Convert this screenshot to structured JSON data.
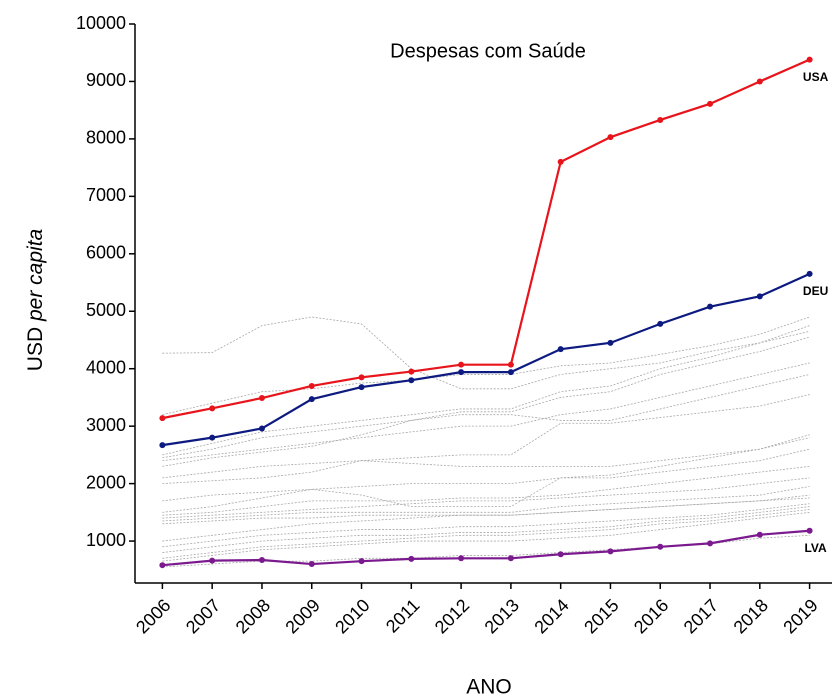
{
  "chart_data": {
    "type": "line",
    "title": "Despesas com Saúde",
    "xlabel": "ANO",
    "ylabel": {
      "text": "USD",
      "emphasis": "per capita"
    },
    "x": [
      2006,
      2007,
      2008,
      2009,
      2010,
      2011,
      2012,
      2013,
      2014,
      2015,
      2016,
      2017,
      2018,
      2019
    ],
    "xlim": [
      2005.45,
      2019.45
    ],
    "xticks": [
      2006,
      2007,
      2008,
      2009,
      2010,
      2011,
      2012,
      2013,
      2014,
      2015,
      2016,
      2017,
      2018,
      2019
    ],
    "ylim": [
      270,
      10000
    ],
    "yticks": [
      1000,
      2000,
      3000,
      4000,
      5000,
      6000,
      7000,
      8000,
      9000,
      10000
    ],
    "series": [
      {
        "color": "#a8a8a8",
        "dashed": true,
        "values": [
          4270,
          4280,
          4750,
          4900,
          4780,
          4000,
          3650,
          3650,
          3900,
          4000,
          4100,
          4300,
          4450,
          4650
        ]
      },
      {
        "color": "#a8a8a8",
        "dashed": true,
        "values": [
          3200,
          3400,
          3600,
          3650,
          3750,
          3800,
          3900,
          3900,
          4050,
          4100,
          4250,
          4400,
          4600,
          4900
        ]
      },
      {
        "color": "#a8a8a8",
        "dashed": true,
        "values": [
          2500,
          2700,
          2900,
          3000,
          3100,
          3200,
          3300,
          3300,
          3600,
          3700,
          4000,
          4200,
          4450,
          4750
        ]
      },
      {
        "color": "#a8a8a8",
        "dashed": true,
        "values": [
          2450,
          2600,
          2800,
          2900,
          3000,
          3100,
          3250,
          3250,
          3500,
          3600,
          3900,
          4100,
          4300,
          4550
        ]
      },
      {
        "color": "#a8a8a8",
        "dashed": true,
        "values": [
          2400,
          2500,
          2600,
          2700,
          2800,
          2900,
          3000,
          3000,
          3200,
          3300,
          3500,
          3700,
          3900,
          4100
        ]
      },
      {
        "color": "#a8a8a8",
        "dashed": true,
        "values": [
          2300,
          2450,
          2550,
          2650,
          2850,
          3100,
          3200,
          3200,
          3100,
          3100,
          3300,
          3500,
          3700,
          3900
        ]
      },
      {
        "color": "#a8a8a8",
        "dashed": true,
        "values": [
          2100,
          2200,
          2300,
          2350,
          2400,
          2450,
          2500,
          2500,
          3050,
          3050,
          3150,
          3250,
          3350,
          3550
        ]
      },
      {
        "color": "#a8a8a8",
        "dashed": true,
        "values": [
          2000,
          2050,
          2100,
          2200,
          2400,
          2350,
          2300,
          2300,
          2300,
          2300,
          2400,
          2500,
          2600,
          2800
        ]
      },
      {
        "color": "#a8a8a8",
        "dashed": true,
        "values": [
          1700,
          1800,
          1850,
          1900,
          1950,
          2000,
          2000,
          2000,
          2100,
          2150,
          2300,
          2450,
          2600,
          2850
        ]
      },
      {
        "color": "#a8a8a8",
        "dashed": true,
        "values": [
          1500,
          1600,
          1750,
          1900,
          1800,
          1600,
          1600,
          1600,
          2100,
          2100,
          2200,
          2300,
          2400,
          2600
        ]
      },
      {
        "color": "#a8a8a8",
        "dashed": true,
        "values": [
          1450,
          1500,
          1600,
          1700,
          1700,
          1700,
          1750,
          1750,
          1800,
          1900,
          2000,
          2100,
          2200,
          2300
        ]
      },
      {
        "color": "#a8a8a8",
        "dashed": true,
        "values": [
          1400,
          1450,
          1500,
          1550,
          1600,
          1650,
          1700,
          1700,
          1750,
          1800,
          1850,
          1900,
          2000,
          2100
        ]
      },
      {
        "color": "#a8a8a8",
        "dashed": true,
        "values": [
          1350,
          1400,
          1450,
          1500,
          1500,
          1500,
          1500,
          1500,
          1600,
          1650,
          1700,
          1750,
          1800,
          1950
        ]
      },
      {
        "color": "#a8a8a8",
        "dashed": true,
        "values": [
          1300,
          1350,
          1400,
          1400,
          1450,
          1450,
          1450,
          1450,
          1500,
          1550,
          1600,
          1650,
          1700,
          1800
        ]
      },
      {
        "color": "#a8a8a8",
        "dashed": true,
        "values": [
          1000,
          1100,
          1200,
          1300,
          1350,
          1400,
          1450,
          1450,
          1500,
          1550,
          1600,
          1650,
          1700,
          1750
        ]
      },
      {
        "color": "#a8a8a8",
        "dashed": true,
        "values": [
          900,
          1000,
          1100,
          1150,
          1200,
          1200,
          1250,
          1250,
          1300,
          1350,
          1400,
          1450,
          1550,
          1650
        ]
      },
      {
        "color": "#a8a8a8",
        "dashed": true,
        "values": [
          800,
          900,
          1000,
          1050,
          1100,
          1100,
          1150,
          1150,
          1200,
          1250,
          1350,
          1400,
          1500,
          1600
        ]
      },
      {
        "color": "#a8a8a8",
        "dashed": true,
        "values": [
          700,
          800,
          900,
          950,
          1000,
          1050,
          1100,
          1100,
          1150,
          1200,
          1300,
          1350,
          1450,
          1550
        ]
      },
      {
        "color": "#a8a8a8",
        "dashed": true,
        "values": [
          650,
          750,
          850,
          900,
          950,
          1000,
          1000,
          1000,
          1050,
          1100,
          1200,
          1300,
          1400,
          1500
        ]
      },
      {
        "color": "#a8a8a8",
        "dashed": true,
        "values": [
          550,
          600,
          650,
          650,
          700,
          700,
          750,
          750,
          800,
          850,
          900,
          950,
          1050,
          1100
        ]
      },
      {
        "name": "USA",
        "color": "#e8141b",
        "markers": true,
        "values": [
          3140,
          3310,
          3490,
          3700,
          3850,
          3950,
          4070,
          4070,
          7600,
          8030,
          8330,
          8610,
          9000,
          9380
        ]
      },
      {
        "name": "DEU",
        "color": "#0d1a80",
        "markers": true,
        "values": [
          2670,
          2800,
          2960,
          3470,
          3680,
          3800,
          3940,
          3940,
          4340,
          4450,
          4780,
          5080,
          5260,
          5650
        ]
      },
      {
        "name": "LVA",
        "color": "#7b1a8e",
        "markers": true,
        "values": [
          580,
          660,
          670,
          600,
          650,
          690,
          700,
          700,
          770,
          820,
          900,
          960,
          1110,
          1180
        ]
      }
    ]
  }
}
